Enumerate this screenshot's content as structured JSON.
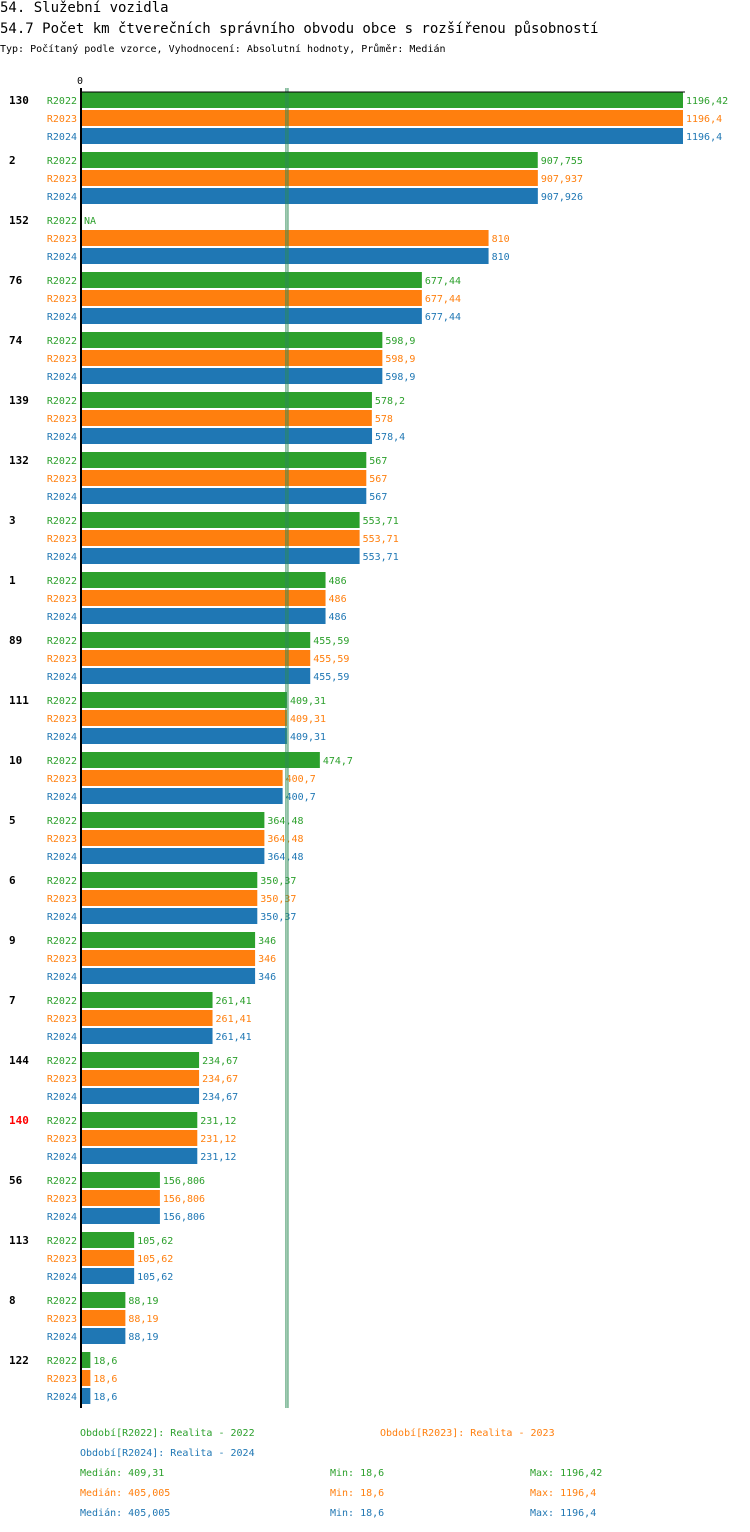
{
  "header": {
    "title": "54. Služební vozidla",
    "subtitle": "54.7 Počet km čtverečních správního obvodu obce s rozšířenou působností",
    "type_line": "Typ: Počítaný podle vzorce, Vyhodnocení: Absolutní hodnoty, Průměr: Medián"
  },
  "colors": {
    "R2022": "#2ca02c",
    "R2023": "#ff7f0e",
    "R2024": "#1f77b4",
    "highlight": "#ff0000",
    "median": "#2e8b57"
  },
  "chart_data": {
    "type": "bar",
    "orientation": "horizontal",
    "axis_zero_label": "0",
    "xlim": [
      0,
      1196.42
    ],
    "median": 409.31,
    "highlight_category": "140",
    "series_names": [
      "R2022",
      "R2023",
      "R2024"
    ],
    "categories": [
      "130",
      "2",
      "152",
      "76",
      "74",
      "139",
      "132",
      "3",
      "1",
      "89",
      "111",
      "10",
      "5",
      "6",
      "9",
      "7",
      "144",
      "140",
      "56",
      "113",
      "8",
      "122"
    ],
    "values": [
      [
        1196.42,
        1196.4,
        1196.4
      ],
      [
        907.755,
        907.937,
        907.926
      ],
      [
        null,
        810,
        810
      ],
      [
        677.44,
        677.44,
        677.44
      ],
      [
        598.9,
        598.9,
        598.9
      ],
      [
        578.2,
        578,
        578.4
      ],
      [
        567,
        567,
        567
      ],
      [
        553.71,
        553.71,
        553.71
      ],
      [
        486,
        486,
        486
      ],
      [
        455.59,
        455.59,
        455.59
      ],
      [
        409.31,
        409.31,
        409.31
      ],
      [
        474.7,
        400.7,
        400.7
      ],
      [
        364.48,
        364.48,
        364.48
      ],
      [
        350.37,
        350.37,
        350.37
      ],
      [
        346,
        346,
        346
      ],
      [
        261.41,
        261.41,
        261.41
      ],
      [
        234.67,
        234.67,
        234.67
      ],
      [
        231.12,
        231.12,
        231.12
      ],
      [
        156.806,
        156.806,
        156.806
      ],
      [
        105.62,
        105.62,
        105.62
      ],
      [
        88.19,
        88.19,
        88.19
      ],
      [
        18.6,
        18.6,
        18.6
      ]
    ],
    "value_labels": [
      [
        "1196,42",
        "1196,4",
        "1196,4"
      ],
      [
        "907,755",
        "907,937",
        "907,926"
      ],
      [
        "NA",
        "810",
        "810"
      ],
      [
        "677,44",
        "677,44",
        "677,44"
      ],
      [
        "598,9",
        "598,9",
        "598,9"
      ],
      [
        "578,2",
        "578",
        "578,4"
      ],
      [
        "567",
        "567",
        "567"
      ],
      [
        "553,71",
        "553,71",
        "553,71"
      ],
      [
        "486",
        "486",
        "486"
      ],
      [
        "455,59",
        "455,59",
        "455,59"
      ],
      [
        "409,31",
        "409,31",
        "409,31"
      ],
      [
        "474,7",
        "400,7",
        "400,7"
      ],
      [
        "364,48",
        "364,48",
        "364,48"
      ],
      [
        "350,37",
        "350,37",
        "350,37"
      ],
      [
        "346",
        "346",
        "346"
      ],
      [
        "261,41",
        "261,41",
        "261,41"
      ],
      [
        "234,67",
        "234,67",
        "234,67"
      ],
      [
        "231,12",
        "231,12",
        "231,12"
      ],
      [
        "156,806",
        "156,806",
        "156,806"
      ],
      [
        "105,62",
        "105,62",
        "105,62"
      ],
      [
        "88,19",
        "88,19",
        "88,19"
      ],
      [
        "18,6",
        "18,6",
        "18,6"
      ]
    ]
  },
  "legend": {
    "period_r2022": "Období[R2022]: Realita - 2022",
    "period_r2023": "Období[R2023]: Realita - 2023",
    "period_r2024": "Období[R2024]: Realita - 2024",
    "stats": [
      {
        "median": "Medián: 409,31",
        "min": "Min: 18,6",
        "max": "Max: 1196,42"
      },
      {
        "median": "Medián: 405,005",
        "min": "Min: 18,6",
        "max": "Max: 1196,4"
      },
      {
        "median": "Medián: 405,005",
        "min": "Min: 18,6",
        "max": "Max: 1196,4"
      }
    ]
  }
}
